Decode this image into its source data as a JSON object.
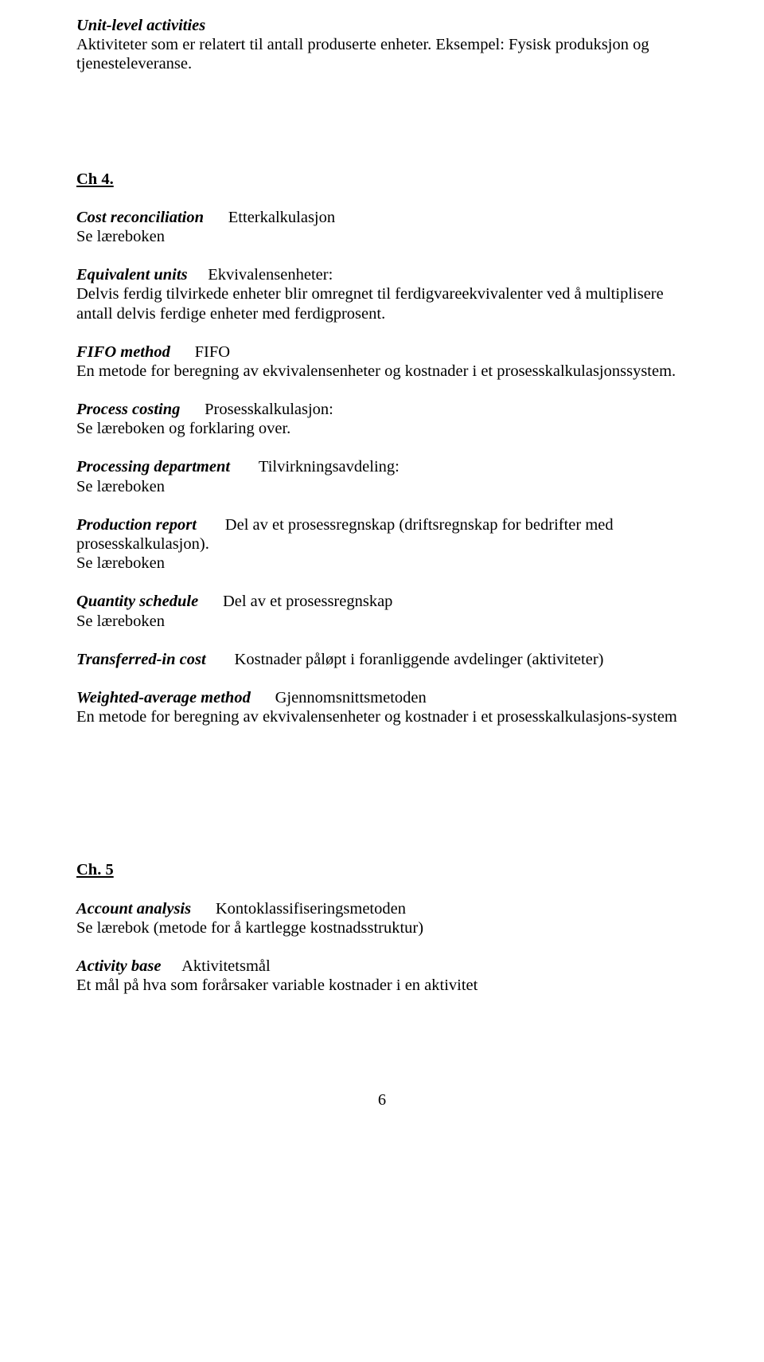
{
  "entries": [
    {
      "term": "Unit-level activities",
      "translation": "",
      "definition": "Aktiviteter som er relatert til antall produserte enheter. Eksempel: Fysisk produksjon og tjenesteleveranse."
    }
  ],
  "chapter4": {
    "title": "Ch 4.",
    "entries": [
      {
        "term": "Cost reconciliation",
        "translation": "Etterkalkulasjon",
        "definition": "Se læreboken"
      },
      {
        "term": "Equivalent units",
        "translation": "Ekvivalensenheter:",
        "definition": "Delvis ferdig tilvirkede enheter blir omregnet til ferdigvareekvivalenter ved å multiplisere antall delvis ferdige enheter med ferdigprosent."
      },
      {
        "term": "FIFO method",
        "translation": "FIFO",
        "definition": "En metode for beregning av ekvivalensenheter og kostnader i et prosesskalkulasjonssystem."
      },
      {
        "term": "Process costing",
        "translation": "Prosesskalkulasjon:",
        "definition": "Se læreboken og forklaring over."
      },
      {
        "term": "Processing department",
        "translation": "Tilvirkningsavdeling:",
        "definition": "Se læreboken"
      },
      {
        "term": "Production report",
        "translation": "Del av et prosessregnskap (driftsregnskap for bedrifter med",
        "definition_pre": "prosesskalkulasjon).",
        "definition": "Se læreboken"
      },
      {
        "term": "Quantity schedule",
        "translation": "Del av et prosessregnskap",
        "definition": "Se læreboken"
      },
      {
        "term": "Transferred-in cost",
        "translation": "Kostnader påløpt i foranliggende avdelinger (aktiviteter)",
        "definition": ""
      },
      {
        "term": "Weighted-average method",
        "translation": "Gjennomsnittsmetoden",
        "definition": "En metode for beregning av ekvivalensenheter og kostnader i et prosesskalkulasjons-system"
      }
    ]
  },
  "chapter5": {
    "title": "Ch. 5",
    "entries": [
      {
        "term": "Account analysis",
        "translation": "Kontoklassifiseringsmetoden",
        "definition": "Se lærebok (metode for å kartlegge kostnadsstruktur)"
      },
      {
        "term": "Activity base",
        "translation": "Aktivitetsmål",
        "definition": "Et mål på hva som forårsaker variable kostnader i en aktivitet"
      }
    ]
  },
  "page_number": "6"
}
